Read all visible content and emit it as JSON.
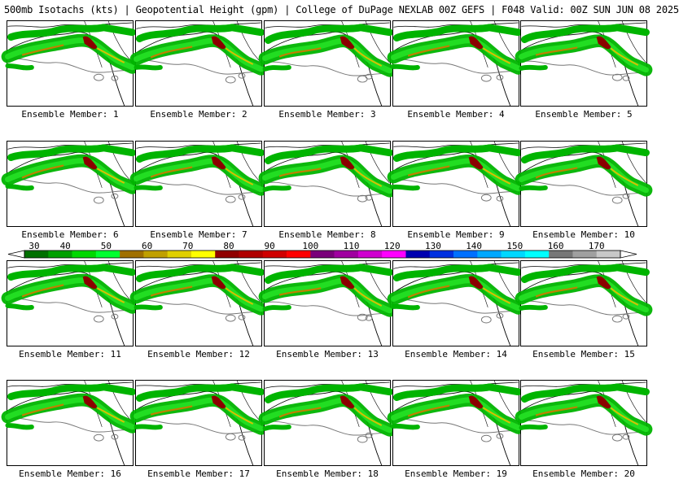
{
  "title": "500mb Isotachs (kts) | Geopotential Height (gpm) | College of DuPage NEXLAB   00Z GEFS | F048 Valid: 00Z SUN JUN 08 2025",
  "panels": [
    {
      "label": "Ensemble Member: 1"
    },
    {
      "label": "Ensemble Member: 2"
    },
    {
      "label": "Ensemble Member: 3"
    },
    {
      "label": "Ensemble Member: 4"
    },
    {
      "label": "Ensemble Member: 5"
    },
    {
      "label": "Ensemble Member: 6"
    },
    {
      "label": "Ensemble Member: 7"
    },
    {
      "label": "Ensemble Member: 8"
    },
    {
      "label": "Ensemble Member: 9"
    },
    {
      "label": "Ensemble Member: 10"
    },
    {
      "label": "Ensemble Member: 11"
    },
    {
      "label": "Ensemble Member: 12"
    },
    {
      "label": "Ensemble Member: 13"
    },
    {
      "label": "Ensemble Member: 14"
    },
    {
      "label": "Ensemble Member: 15"
    },
    {
      "label": "Ensemble Member: 16"
    },
    {
      "label": "Ensemble Member: 17"
    },
    {
      "label": "Ensemble Member: 18"
    },
    {
      "label": "Ensemble Member: 19"
    },
    {
      "label": "Ensemble Member: 20"
    }
  ],
  "colorbar": {
    "labels": [
      "30",
      "40",
      "50",
      "60",
      "70",
      "80",
      "90",
      "100",
      "110",
      "120",
      "130",
      "140",
      "150",
      "160",
      "170"
    ],
    "colors": [
      "#007000",
      "#00a000",
      "#00d800",
      "#00ff30",
      "#a07000",
      "#c0a000",
      "#e0d000",
      "#ffff00",
      "#900000",
      "#b00000",
      "#d00000",
      "#ff0000",
      "#7a007a",
      "#a000a0",
      "#d000d0",
      "#ff00ff",
      "#0000b0",
      "#0030e0",
      "#0070ff",
      "#00a8ff",
      "#00d8ff",
      "#00ffff",
      "#777777",
      "#a0a0a0",
      "#c8c8c8"
    ]
  },
  "colors": {
    "jet_green": "#00b400",
    "jet_light_green": "#22dd22",
    "jet_orange": "#c08000",
    "jet_yellow": "#d8c000",
    "jet_core": "#8b0000",
    "height_contour": "#777777",
    "coastline": "#000000"
  }
}
